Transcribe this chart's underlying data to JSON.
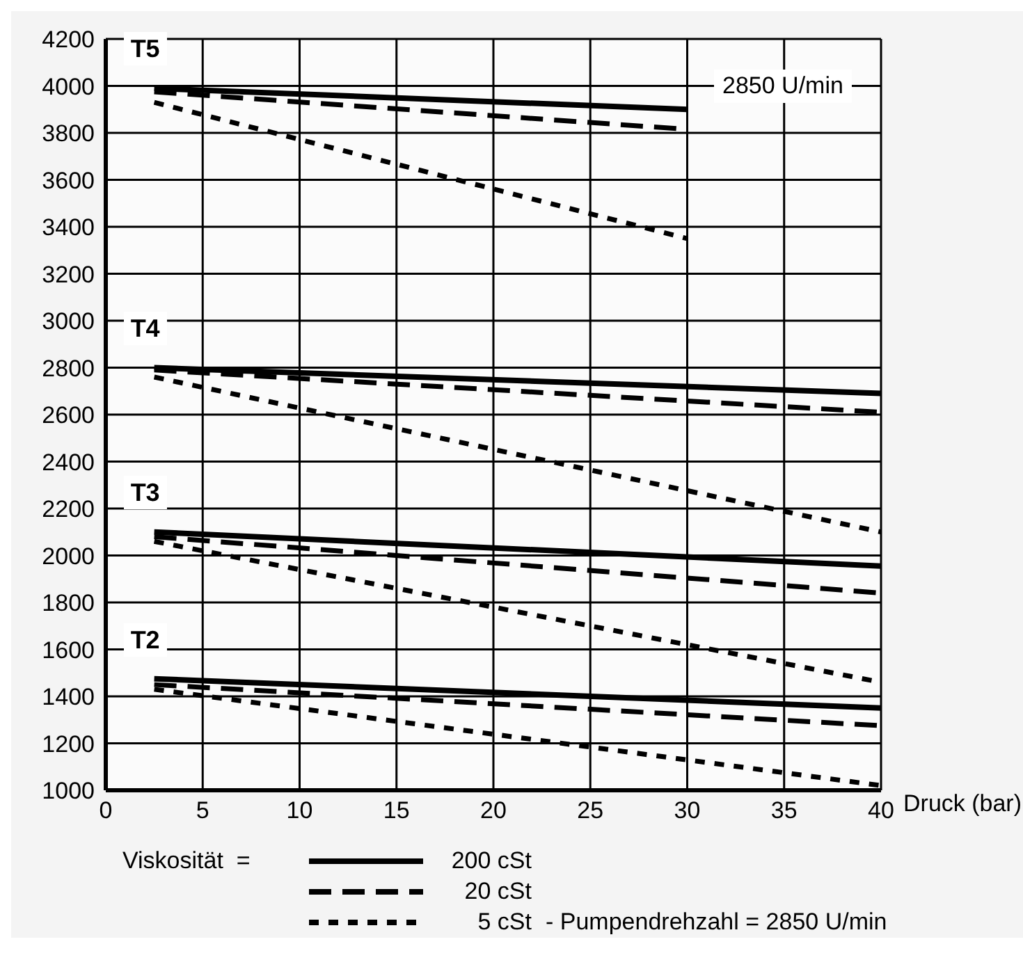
{
  "chart_data": {
    "type": "line",
    "xlabel": "Druck (bar)",
    "legend_title": "Viskosität  =",
    "xlim": [
      0,
      40
    ],
    "xticks": [
      0,
      5,
      10,
      15,
      20,
      25,
      30,
      35,
      40
    ],
    "ylim": [
      1000,
      4200
    ],
    "yticks": [
      1000,
      1200,
      1400,
      1600,
      1800,
      2000,
      2200,
      2400,
      2600,
      2800,
      3000,
      3200,
      3400,
      3600,
      3800,
      4000,
      4200
    ],
    "grid": true,
    "legend": "bottom",
    "marker": "none",
    "series": [
      {
        "name": "200 cSt",
        "color": "#000000",
        "line_style": "solid",
        "x": [
          2.5,
          30
        ],
        "values": [
          3990,
          3900
        ]
      },
      {
        "name": "20 cSt",
        "color": "#000000",
        "line_style": "dashed",
        "x": [
          2.5,
          30
        ],
        "values": [
          3975,
          3815
        ]
      },
      {
        "name": "5 cSt",
        "color": "#000000",
        "line_style": "dotted",
        "x": [
          2.5,
          30
        ],
        "values": [
          3930,
          3350
        ]
      },
      {
        "color": "#000000",
        "line_style": "solid",
        "x": [
          2.5,
          40
        ],
        "values": [
          2800,
          2690
        ]
      },
      {
        "color": "#000000",
        "line_style": "dashed",
        "x": [
          2.5,
          40
        ],
        "values": [
          2790,
          2610
        ]
      },
      {
        "color": "#000000",
        "line_style": "dotted",
        "x": [
          2.5,
          40
        ],
        "values": [
          2760,
          2100
        ]
      },
      {
        "color": "#000000",
        "line_style": "solid",
        "x": [
          2.5,
          40
        ],
        "values": [
          2100,
          1955
        ]
      },
      {
        "color": "#000000",
        "line_style": "dashed",
        "x": [
          2.5,
          40
        ],
        "values": [
          2080,
          1840
        ]
      },
      {
        "color": "#000000",
        "line_style": "dotted",
        "x": [
          2.5,
          40
        ],
        "values": [
          2060,
          1460
        ]
      },
      {
        "color": "#000000",
        "line_style": "solid",
        "x": [
          2.5,
          40
        ],
        "values": [
          1475,
          1350
        ]
      },
      {
        "color": "#000000",
        "line_style": "dashed",
        "x": [
          2.5,
          40
        ],
        "values": [
          1450,
          1275
        ]
      },
      {
        "color": "#000000",
        "line_style": "dotted",
        "x": [
          2.5,
          40
        ],
        "values": [
          1430,
          1020
        ]
      }
    ],
    "annotations": [
      "T5",
      "T4",
      "T3",
      "T2",
      "2850 U/min",
      "- Pumpendrehzahl = 2850 U/min"
    ]
  }
}
